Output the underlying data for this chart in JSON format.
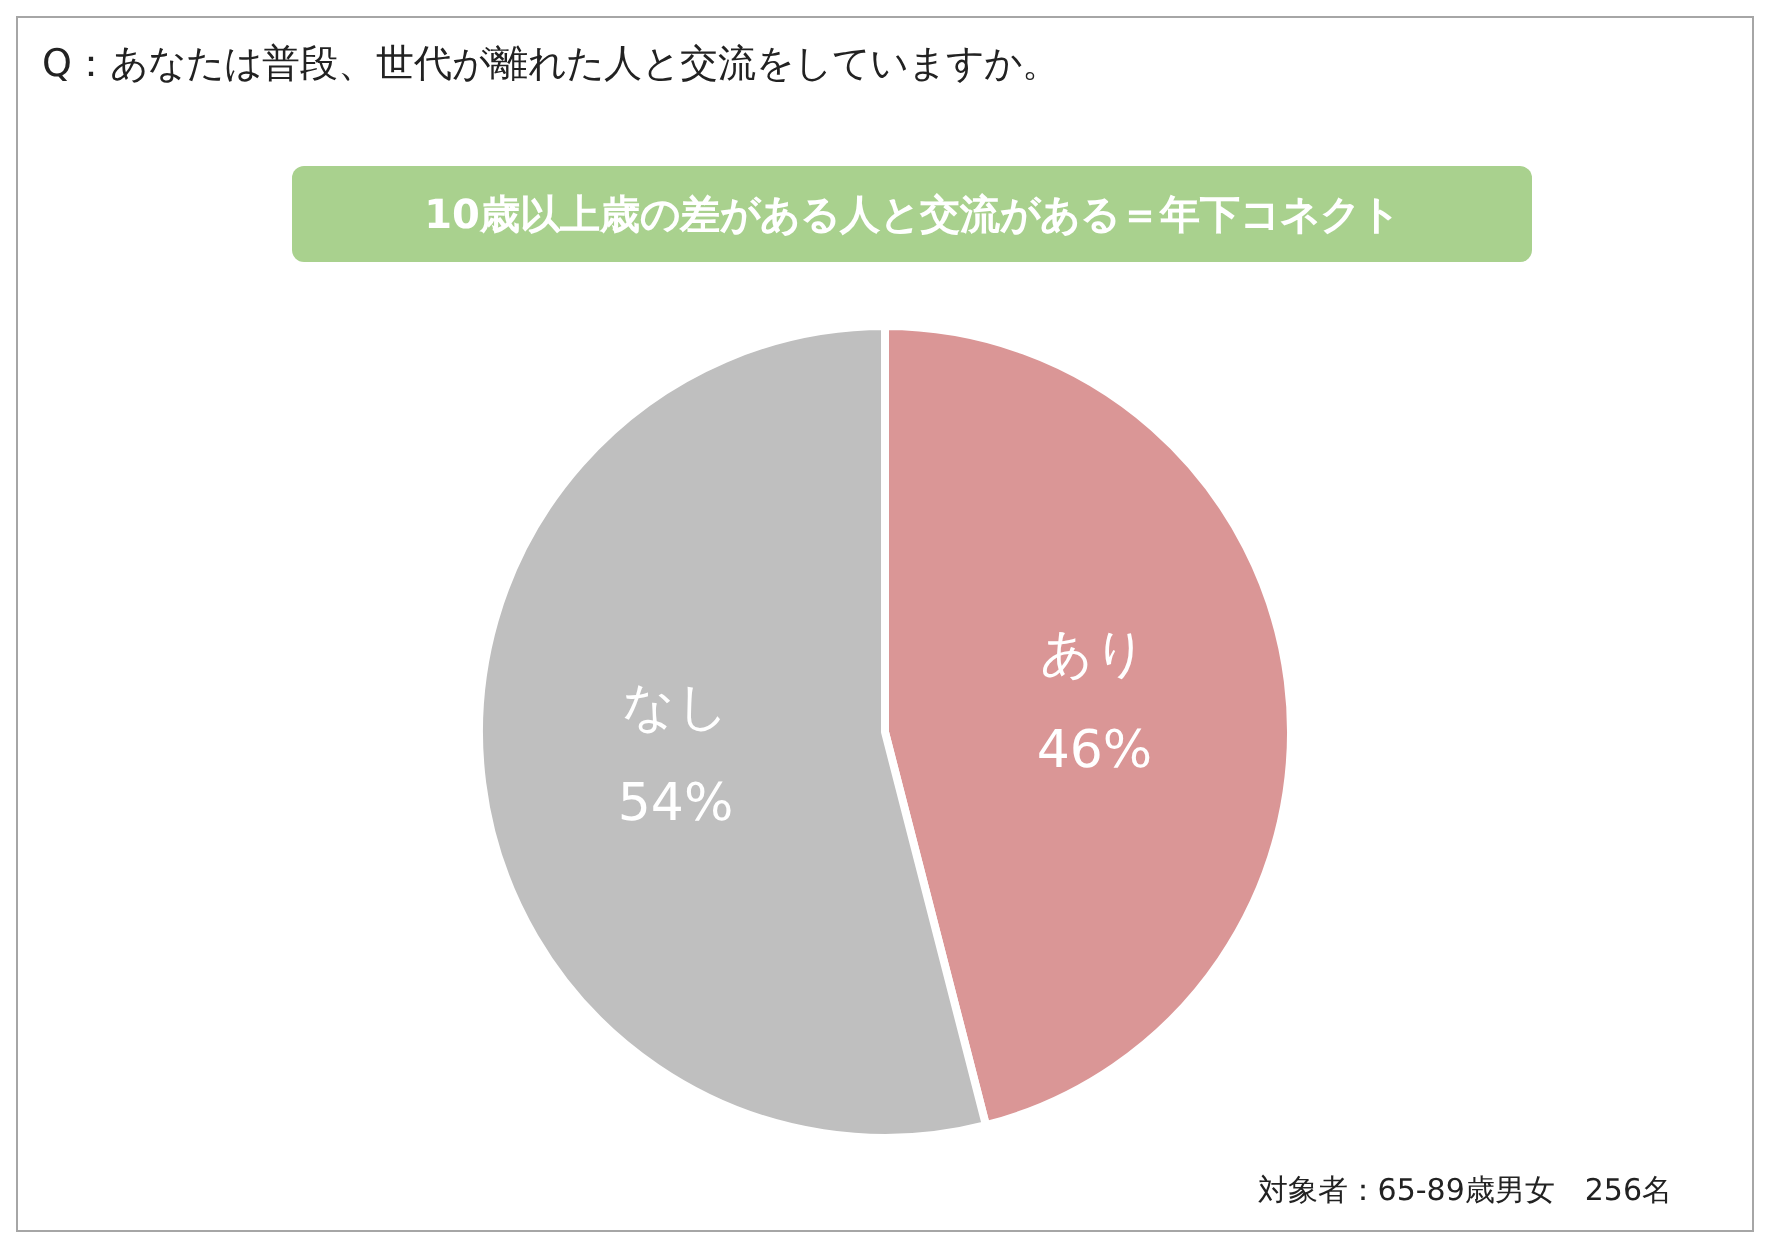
{
  "chart_data": {
    "type": "pie",
    "title": "Q：あなたは普段、世代が離れた人と交流をしていますか。",
    "subtitle": "10歳以上歳の差がある人と交流がある＝年下コネクト",
    "categories": [
      "あり",
      "なし"
    ],
    "values": [
      46,
      54
    ],
    "colors": [
      "#da9696",
      "#bfbfbf"
    ],
    "value_labels": [
      "46%",
      "54%"
    ],
    "legend": false,
    "annotations": [
      "対象者：65-89歳男女　256名"
    ]
  }
}
